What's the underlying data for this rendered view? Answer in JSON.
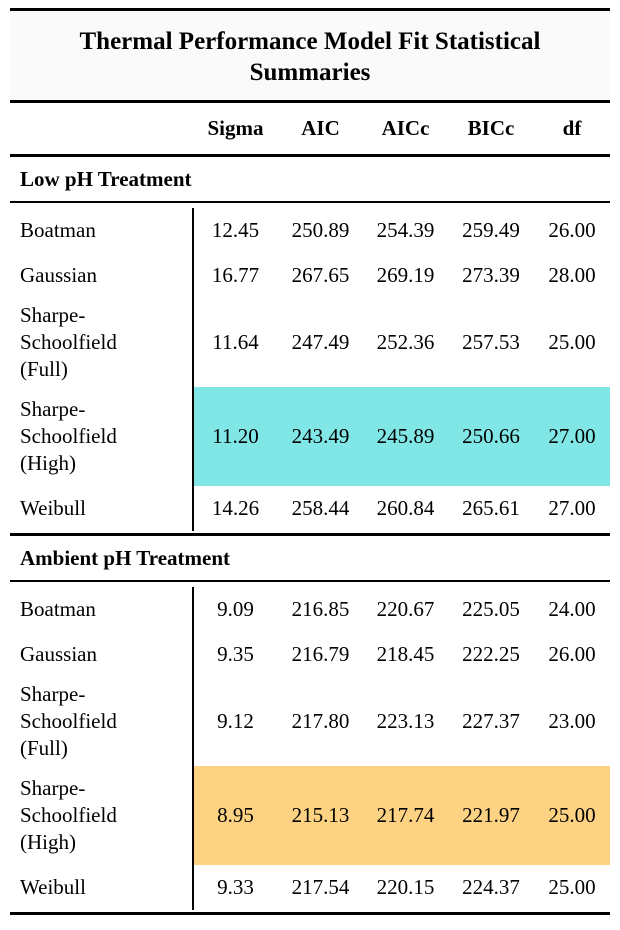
{
  "table": {
    "title": "Thermal Performance Model Fit Statistical Summaries",
    "columns": [
      "",
      "Sigma",
      "AIC",
      "AICc",
      "BICc",
      "df"
    ],
    "groups": [
      {
        "name": "Low pH Treatment",
        "rows": [
          {
            "model": "Boatman",
            "sigma": "12.45",
            "aic": "250.89",
            "aicc": "254.39",
            "bicc": "259.49",
            "df": "26.00"
          },
          {
            "model": "Gaussian",
            "sigma": "16.77",
            "aic": "267.65",
            "aicc": "269.19",
            "bicc": "273.39",
            "df": "28.00"
          },
          {
            "model": "Sharpe-\nSchoolfield\n(Full)",
            "sigma": "11.64",
            "aic": "247.49",
            "aicc": "252.36",
            "bicc": "257.53",
            "df": "25.00"
          },
          {
            "model": "Sharpe-\nSchoolfield\n(High)",
            "sigma": "11.20",
            "aic": "243.49",
            "aicc": "245.89",
            "bicc": "250.66",
            "df": "27.00"
          },
          {
            "model": "Weibull",
            "sigma": "14.26",
            "aic": "258.44",
            "aicc": "260.84",
            "bicc": "265.61",
            "df": "27.00"
          }
        ]
      },
      {
        "name": "Ambient pH Treatment",
        "rows": [
          {
            "model": "Boatman",
            "sigma": "9.09",
            "aic": "216.85",
            "aicc": "220.67",
            "bicc": "225.05",
            "df": "24.00"
          },
          {
            "model": "Gaussian",
            "sigma": "9.35",
            "aic": "216.79",
            "aicc": "218.45",
            "bicc": "222.25",
            "df": "26.00"
          },
          {
            "model": "Sharpe-\nSchoolfield\n(Full)",
            "sigma": "9.12",
            "aic": "217.80",
            "aicc": "223.13",
            "bicc": "227.37",
            "df": "23.00"
          },
          {
            "model": "Sharpe-\nSchoolfield\n(High)",
            "sigma": "8.95",
            "aic": "215.13",
            "aicc": "217.74",
            "bicc": "221.97",
            "df": "25.00"
          },
          {
            "model": "Weibull",
            "sigma": "9.33",
            "aic": "217.54",
            "aicc": "220.15",
            "bicc": "224.37",
            "df": "25.00"
          }
        ]
      }
    ],
    "highlight_colors": {
      "low_best": "#80e6e6",
      "ambient_best": "#fdd283"
    }
  }
}
